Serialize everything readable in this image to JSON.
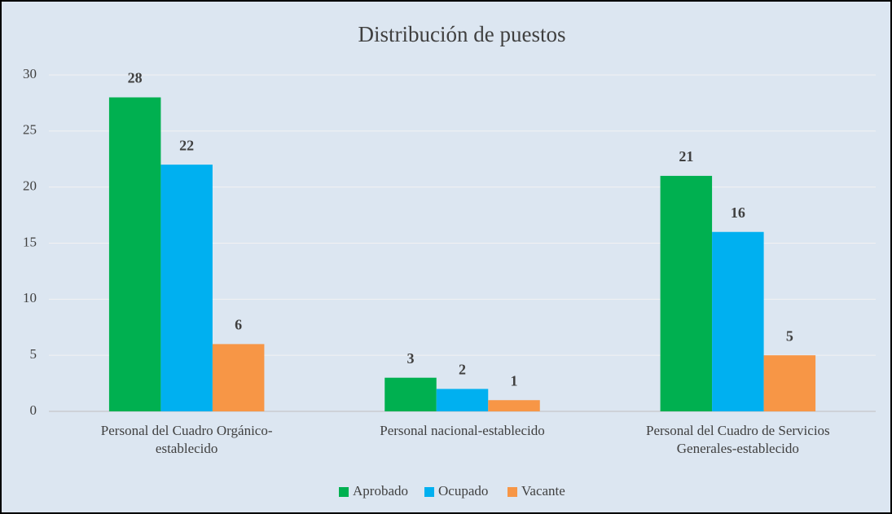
{
  "chart_data": {
    "type": "bar",
    "title": "Distribución de puestos",
    "categories": [
      [
        "Personal del Cuadro Orgánico-",
        "establecido"
      ],
      [
        "Personal nacional-establecido"
      ],
      [
        "Personal del Cuadro de Servicios",
        "Generales-establecido"
      ]
    ],
    "series": [
      {
        "name": "Aprobado",
        "color": "#00b050",
        "values": [
          28,
          3,
          21
        ]
      },
      {
        "name": "Ocupado",
        "color": "#00b0f0",
        "values": [
          22,
          2,
          16
        ]
      },
      {
        "name": "Vacante",
        "color": "#f79646",
        "values": [
          6,
          1,
          5
        ]
      }
    ],
    "ylim": [
      0,
      30
    ],
    "yticks": [
      0,
      5,
      10,
      15,
      20,
      25,
      30
    ],
    "grid": true,
    "legend": "bottom"
  }
}
